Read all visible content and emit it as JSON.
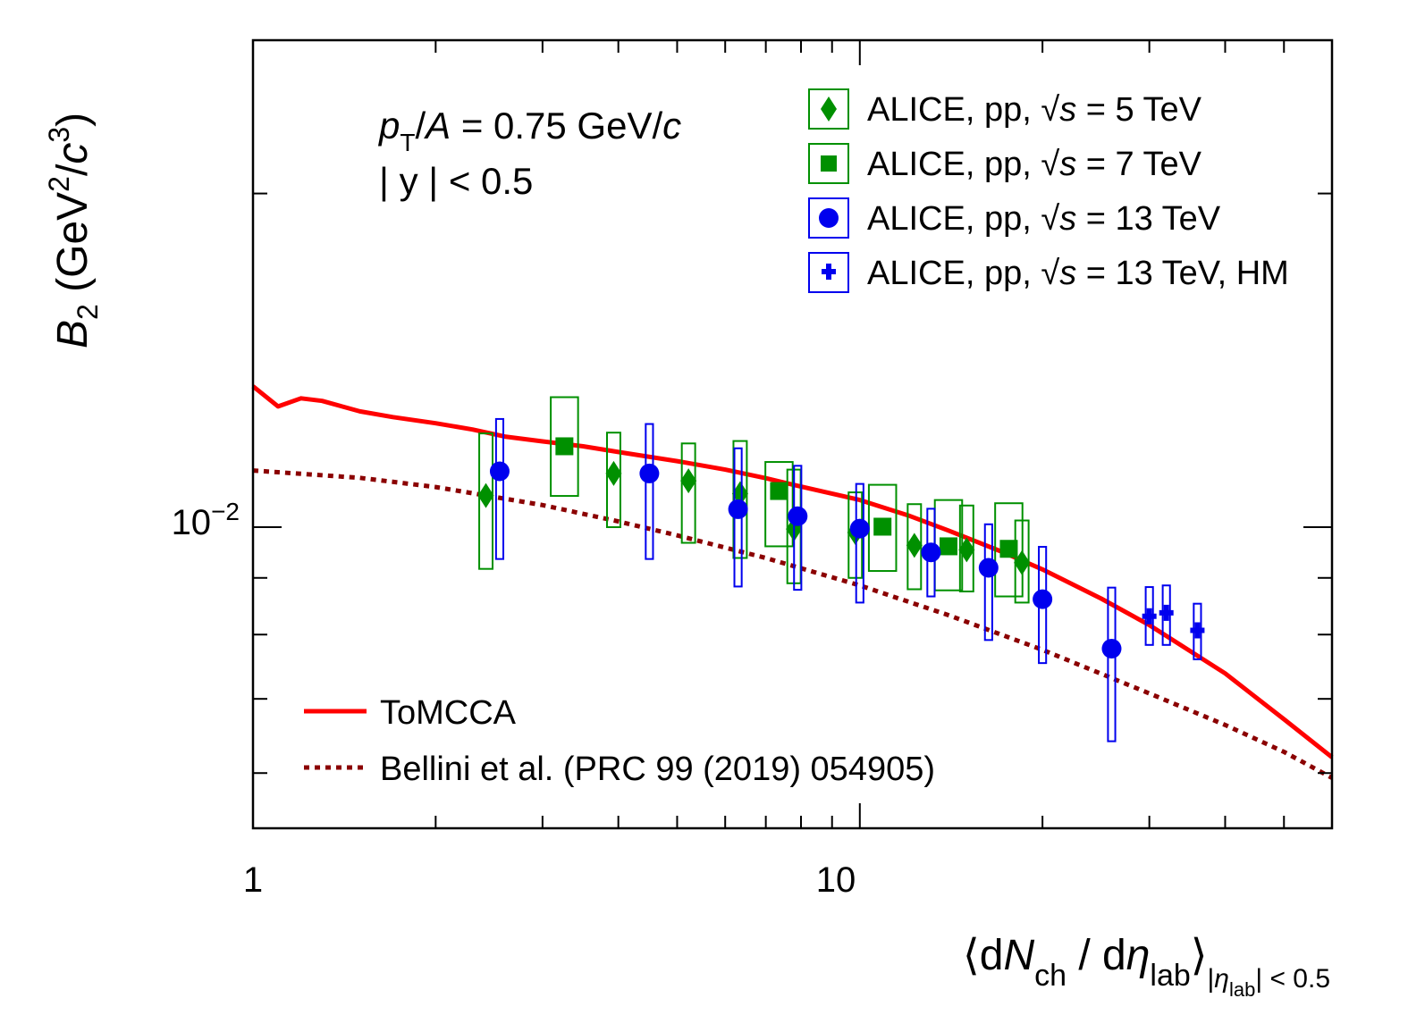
{
  "chart_data": {
    "type": "scatter",
    "x_scale": "log",
    "y_scale": "log",
    "xlim": [
      1,
      60
    ],
    "ylim": [
      0.00535,
      0.0275
    ],
    "x_tick_labels": [
      {
        "x": 1,
        "label": "1"
      },
      {
        "x": 10,
        "label": "10"
      }
    ],
    "y_tick_labels": [
      {
        "y": 0.01,
        "label_base": "10",
        "label_exp": "−2"
      }
    ],
    "xlabel": {
      "open": "⟨d",
      "N": "N",
      "ch": "ch",
      "slash": " / d",
      "eta": "η",
      "lab": "lab",
      "close": "⟩",
      "cut_open": "|",
      "cut_eta": "η",
      "cut_lab": "lab",
      "cut_close": "| < 0.5"
    },
    "ylabel": {
      "B": "B",
      "sub": "2",
      "open": " (GeV",
      "exp1": "2",
      "mid": "/",
      "c": "c",
      "exp2": "3",
      "close": ")"
    },
    "annotation": {
      "p": "p",
      "T": "T",
      "slash": "/",
      "A": "A",
      "eq": " = 0.75 GeV/",
      "c": "c",
      "y_line": "| y | < 0.5"
    },
    "legend_position": "top-right",
    "series": [
      {
        "name": "ALICE, pp, 5 TeV",
        "legend": {
          "prefix": "ALICE, pp, ",
          "sqrt": "√",
          "s": "s",
          "suffix": " = 5 TeV"
        },
        "marker": "diamond",
        "color": "#009000",
        "points": [
          {
            "x": 2.42,
            "y": 0.01068,
            "stat_lo": 0.01055,
            "stat_hi": 0.01082,
            "sys_lo": 0.00917,
            "sys_hi": 0.01215,
            "box": 0.022
          },
          {
            "x": 3.93,
            "y": 0.01118,
            "stat_lo": 0.01104,
            "stat_hi": 0.01131,
            "sys_lo": 0.01,
            "sys_hi": 0.01217,
            "box": 0.022
          },
          {
            "x": 5.22,
            "y": 0.01101,
            "stat_lo": 0.01087,
            "stat_hi": 0.01115,
            "sys_lo": 0.00968,
            "sys_hi": 0.0119,
            "box": 0.022
          },
          {
            "x": 6.35,
            "y": 0.01072,
            "stat_lo": 0.01059,
            "stat_hi": 0.01085,
            "sys_lo": 0.00938,
            "sys_hi": 0.01196,
            "box": 0.022
          },
          {
            "x": 7.79,
            "y": 0.00996,
            "stat_lo": 0.00985,
            "stat_hi": 0.01008,
            "sys_lo": 0.0089,
            "sys_hi": 0.01127,
            "box": 0.022
          },
          {
            "x": 9.83,
            "y": 0.00989,
            "stat_lo": 0.00978,
            "stat_hi": 0.01001,
            "sys_lo": 0.009,
            "sys_hi": 0.01075,
            "box": 0.022
          },
          {
            "x": 12.3,
            "y": 0.00963,
            "stat_lo": 0.00951,
            "stat_hi": 0.00974,
            "sys_lo": 0.00879,
            "sys_hi": 0.01049,
            "box": 0.022
          },
          {
            "x": 15.0,
            "y": 0.00954,
            "stat_lo": 0.00943,
            "stat_hi": 0.00966,
            "sys_lo": 0.00875,
            "sys_hi": 0.01046,
            "box": 0.022
          },
          {
            "x": 18.5,
            "y": 0.00929,
            "stat_lo": 0.00918,
            "stat_hi": 0.0094,
            "sys_lo": 0.00855,
            "sys_hi": 0.01014,
            "box": 0.022
          }
        ]
      },
      {
        "name": "ALICE, pp, 7 TeV",
        "legend": {
          "prefix": "ALICE, pp, ",
          "sqrt": "√",
          "s": "s",
          "suffix": " = 7 TeV"
        },
        "marker": "square",
        "color": "#009000",
        "points": [
          {
            "x": 3.26,
            "y": 0.01183,
            "stat_lo": 0.01165,
            "stat_hi": 0.01202,
            "sys_lo": 0.01067,
            "sys_hi": 0.0131,
            "box": 0.045
          },
          {
            "x": 7.36,
            "y": 0.01078,
            "stat_lo": 0.01064,
            "stat_hi": 0.01092,
            "sys_lo": 0.00961,
            "sys_hi": 0.01145,
            "box": 0.045
          },
          {
            "x": 10.9,
            "y": 0.01001,
            "stat_lo": 0.00989,
            "stat_hi": 0.01013,
            "sys_lo": 0.00913,
            "sys_hi": 0.01092,
            "box": 0.045
          },
          {
            "x": 14.0,
            "y": 0.00961,
            "stat_lo": 0.0095,
            "stat_hi": 0.00972,
            "sys_lo": 0.00877,
            "sys_hi": 0.01058,
            "box": 0.045
          },
          {
            "x": 17.6,
            "y": 0.00956,
            "stat_lo": 0.00945,
            "stat_hi": 0.00968,
            "sys_lo": 0.00866,
            "sys_hi": 0.01051,
            "box": 0.045
          }
        ]
      },
      {
        "name": "ALICE, pp, 13 TeV",
        "legend": {
          "prefix": "ALICE, pp, ",
          "sqrt": "√",
          "s": "s",
          "suffix": " = 13 TeV"
        },
        "marker": "circle",
        "color": "#0000ee",
        "points": [
          {
            "x": 2.55,
            "y": 0.01123,
            "stat_lo": 0.01109,
            "stat_hi": 0.01137,
            "sys_lo": 0.00936,
            "sys_hi": 0.01252,
            "box": 0.012
          },
          {
            "x": 4.5,
            "y": 0.01118,
            "stat_lo": 0.01104,
            "stat_hi": 0.01132,
            "sys_lo": 0.00936,
            "sys_hi": 0.01239,
            "box": 0.012
          },
          {
            "x": 6.3,
            "y": 0.01038,
            "stat_lo": 0.01022,
            "stat_hi": 0.01054,
            "sys_lo": 0.00884,
            "sys_hi": 0.01178,
            "box": 0.012
          },
          {
            "x": 7.9,
            "y": 0.01023,
            "stat_lo": 0.01008,
            "stat_hi": 0.01039,
            "sys_lo": 0.00878,
            "sys_hi": 0.01136,
            "box": 0.012
          },
          {
            "x": 10.0,
            "y": 0.00997,
            "stat_lo": 0.00982,
            "stat_hi": 0.01013,
            "sys_lo": 0.00855,
            "sys_hi": 0.01094,
            "box": 0.012
          },
          {
            "x": 13.1,
            "y": 0.00949,
            "stat_lo": 0.00934,
            "stat_hi": 0.00964,
            "sys_lo": 0.00866,
            "sys_hi": 0.01039,
            "box": 0.012
          },
          {
            "x": 16.3,
            "y": 0.00919,
            "stat_lo": 0.00905,
            "stat_hi": 0.00933,
            "sys_lo": 0.00791,
            "sys_hi": 0.01006,
            "box": 0.012
          },
          {
            "x": 20.0,
            "y": 0.00861,
            "stat_lo": 0.00848,
            "stat_hi": 0.00874,
            "sys_lo": 0.00754,
            "sys_hi": 0.0096,
            "box": 0.012
          },
          {
            "x": 26.0,
            "y": 0.00777,
            "stat_lo": 0.00765,
            "stat_hi": 0.0079,
            "sys_lo": 0.00641,
            "sys_hi": 0.00882,
            "box": 0.012
          }
        ]
      },
      {
        "name": "ALICE, pp, 13 TeV, HM",
        "legend": {
          "prefix": "ALICE, pp, ",
          "sqrt": "√",
          "s": "s",
          "suffix": " = 13 TeV, HM"
        },
        "marker": "cross",
        "color": "#0000ee",
        "points": [
          {
            "x": 30.0,
            "y": 0.00831,
            "stat_lo": 0.0082,
            "stat_hi": 0.00843,
            "sys_lo": 0.00783,
            "sys_hi": 0.00883,
            "box": 0.012
          },
          {
            "x": 32.0,
            "y": 0.00837,
            "stat_lo": 0.00826,
            "stat_hi": 0.00849,
            "sys_lo": 0.00783,
            "sys_hi": 0.00886,
            "box": 0.012
          },
          {
            "x": 36.0,
            "y": 0.00807,
            "stat_lo": 0.00797,
            "stat_hi": 0.00818,
            "sys_lo": 0.0076,
            "sys_hi": 0.00853,
            "box": 0.012
          }
        ]
      }
    ],
    "curves": [
      {
        "name": "ToMCCA",
        "label": "ToMCCA",
        "color": "#ff0000",
        "style": "solid",
        "points": [
          [
            1.0,
            0.0134
          ],
          [
            1.1,
            0.01285
          ],
          [
            1.2,
            0.01307
          ],
          [
            1.3,
            0.013
          ],
          [
            1.5,
            0.01272
          ],
          [
            1.7,
            0.01257
          ],
          [
            2.0,
            0.01241
          ],
          [
            2.3,
            0.01225
          ],
          [
            2.6,
            0.01207
          ],
          [
            3.0,
            0.01195
          ],
          [
            3.5,
            0.01183
          ],
          [
            4.0,
            0.01169
          ],
          [
            5.0,
            0.01147
          ],
          [
            6.0,
            0.01127
          ],
          [
            7.0,
            0.01107
          ],
          [
            8.0,
            0.01088
          ],
          [
            10.0,
            0.01058
          ],
          [
            12.0,
            0.01025
          ],
          [
            14.0,
            0.00993
          ],
          [
            17.0,
            0.00952
          ],
          [
            20.0,
            0.00916
          ],
          [
            25.0,
            0.00862
          ],
          [
            30.0,
            0.00816
          ],
          [
            40.0,
            0.00738
          ],
          [
            50.0,
            0.00671
          ],
          [
            60.0,
            0.0062
          ]
        ]
      },
      {
        "name": "Bellini",
        "label": "Bellini et al. (PRC 99 (2019) 054905)",
        "color": "#8b0000",
        "style": "dotted",
        "points": [
          [
            1.0,
            0.01125
          ],
          [
            1.5,
            0.01108
          ],
          [
            2.0,
            0.01087
          ],
          [
            3.0,
            0.01047
          ],
          [
            4.0,
            0.01012
          ],
          [
            5.0,
            0.00983
          ],
          [
            7.0,
            0.00938
          ],
          [
            10.0,
            0.00886
          ],
          [
            14.0,
            0.00833
          ],
          [
            20.0,
            0.00775
          ],
          [
            30.0,
            0.00708
          ],
          [
            40.0,
            0.00663
          ],
          [
            50.0,
            0.00627
          ],
          [
            60.0,
            0.00594
          ]
        ]
      }
    ]
  }
}
